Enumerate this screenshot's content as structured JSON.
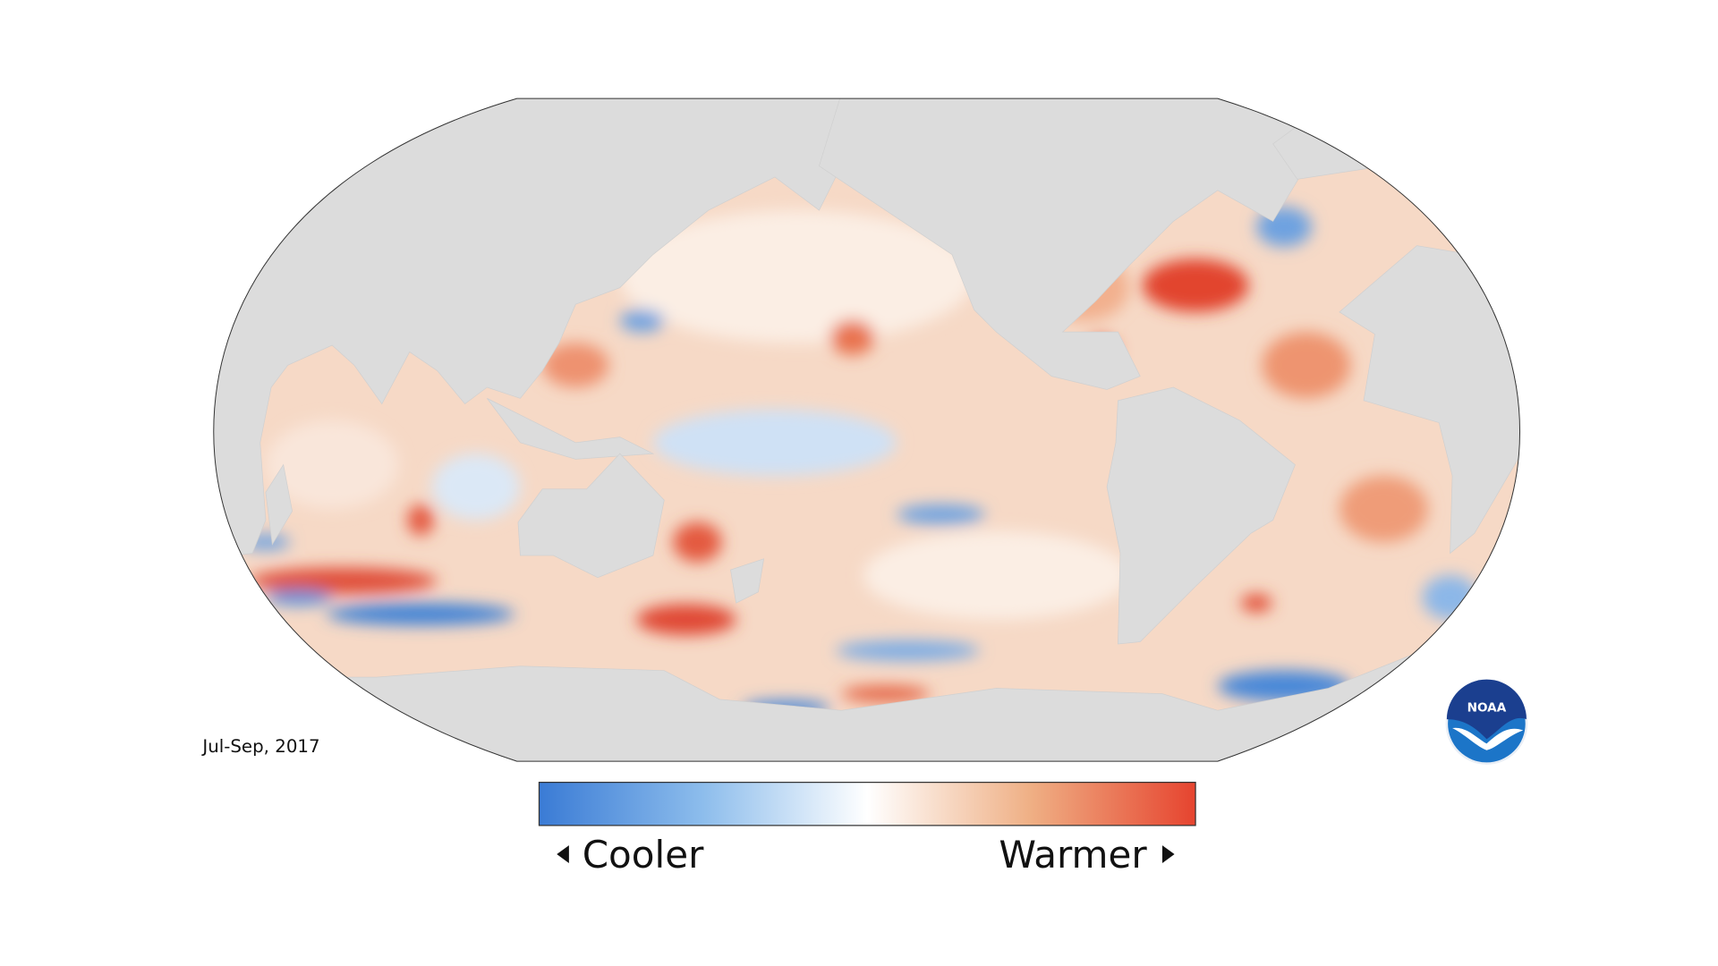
{
  "date_label": "Jul-Sep, 2017",
  "legend": {
    "low_label": "Cooler",
    "high_label": "Warmer"
  },
  "logo": "NOAA"
}
